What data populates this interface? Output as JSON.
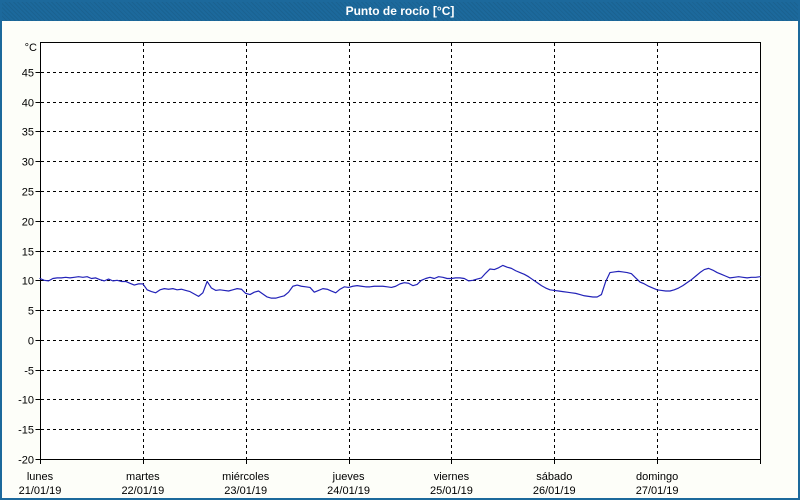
{
  "window": {
    "title": "Punto de rocío [°C]"
  },
  "colors": {
    "titlebar_bg": "#1C699C",
    "titlebar_text": "#FFFFFF",
    "window_border": "#1C699C",
    "window_bg": "#FDFEF9",
    "plot_bg": "#FFFFFF",
    "grid": "#000000",
    "axis_text": "#000000",
    "series_line": "#2222B8"
  },
  "chart_data": {
    "type": "line",
    "title": "Punto de rocío [°C]",
    "y_unit": "°C",
    "ylim": [
      -20,
      50
    ],
    "y_tick_step": 5,
    "y_tick_labels": [
      45,
      40,
      35,
      30,
      25,
      20,
      15,
      10,
      5,
      0,
      -5,
      -10,
      -15,
      -20
    ],
    "grid_style": "dashed",
    "legend": "none",
    "x_span_hours": 168,
    "sample_interval_hours": 1,
    "x_days": [
      {
        "name": "lunes",
        "date": "21/01/19"
      },
      {
        "name": "martes",
        "date": "22/01/19"
      },
      {
        "name": "miércoles",
        "date": "23/01/19"
      },
      {
        "name": "jueves",
        "date": "24/01/19"
      },
      {
        "name": "viernes",
        "date": "25/01/19"
      },
      {
        "name": "sábado",
        "date": "26/01/19"
      },
      {
        "name": "domingo",
        "date": "27/01/19"
      }
    ],
    "series": [
      {
        "name": "Punto de rocío",
        "values": [
          10.3,
          10.0,
          9.9,
          10.3,
          10.4,
          10.4,
          10.5,
          10.4,
          10.5,
          10.6,
          10.5,
          10.6,
          10.3,
          10.4,
          10.1,
          9.9,
          10.2,
          9.9,
          10.0,
          9.8,
          9.8,
          9.5,
          9.2,
          9.4,
          9.4,
          8.4,
          8.1,
          7.9,
          8.4,
          8.6,
          8.5,
          8.6,
          8.4,
          8.5,
          8.3,
          8.1,
          7.7,
          7.3,
          7.9,
          9.8,
          8.7,
          8.3,
          8.4,
          8.3,
          8.2,
          8.4,
          8.6,
          8.5,
          7.8,
          7.6,
          8.0,
          8.2,
          7.7,
          7.2,
          7.0,
          7.0,
          7.2,
          7.4,
          8.0,
          9.0,
          9.2,
          9.0,
          8.9,
          8.8,
          8.0,
          8.3,
          8.6,
          8.5,
          8.2,
          7.9,
          8.5,
          8.9,
          8.8,
          9.0,
          9.1,
          9.0,
          8.9,
          8.9,
          9.0,
          9.0,
          9.0,
          8.9,
          8.8,
          9.0,
          9.4,
          9.6,
          9.5,
          9.1,
          9.3,
          10.0,
          10.3,
          10.5,
          10.3,
          10.6,
          10.5,
          10.3,
          10.3,
          10.4,
          10.4,
          10.3,
          9.9,
          10.0,
          10.2,
          10.4,
          11.2,
          11.9,
          11.8,
          12.1,
          12.5,
          12.2,
          12.0,
          11.6,
          11.3,
          11.0,
          10.6,
          10.1,
          9.6,
          9.1,
          8.7,
          8.4,
          8.3,
          8.2,
          8.1,
          8.0,
          7.9,
          7.8,
          7.6,
          7.4,
          7.3,
          7.2,
          7.2,
          7.6,
          9.8,
          11.3,
          11.4,
          11.5,
          11.4,
          11.3,
          11.1,
          10.4,
          9.7,
          9.4,
          9.0,
          8.7,
          8.4,
          8.3,
          8.2,
          8.2,
          8.4,
          8.7,
          9.1,
          9.6,
          10.1,
          10.7,
          11.3,
          11.8,
          12.0,
          11.7,
          11.3,
          11.0,
          10.7,
          10.4,
          10.5,
          10.6,
          10.5,
          10.4,
          10.5,
          10.5,
          10.6
        ]
      }
    ]
  }
}
